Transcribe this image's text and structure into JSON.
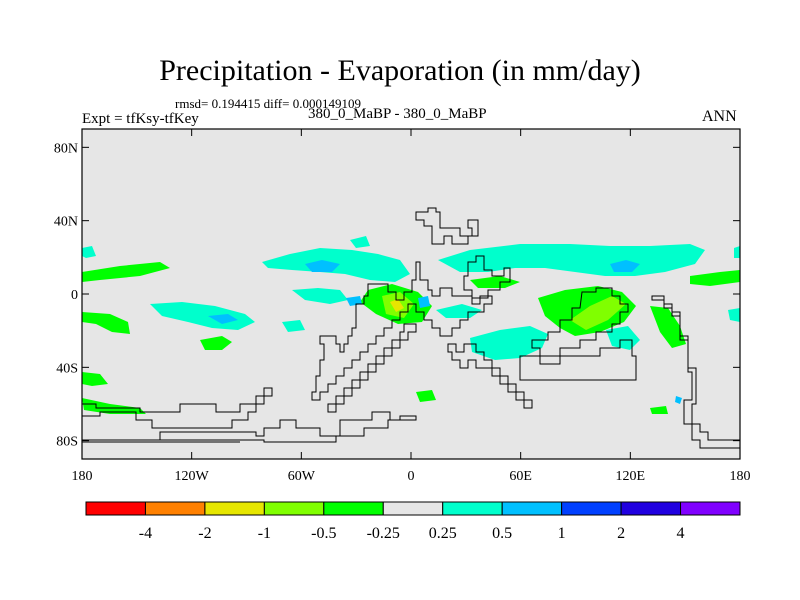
{
  "title": "Precipitation - Evaporation (in mm/day)",
  "stats": "rmsd= 0.194415 diff= 0.000149109",
  "expt": "Expt = tfKsy-tfKey",
  "subtitle": "380_0_MaBP - 380_0_MaBP",
  "season": "ANN",
  "map": {
    "projection": "cylindrical-equidistant",
    "lon_range": [
      -180,
      180
    ],
    "lat_range": [
      -90,
      90
    ],
    "background_color": "#e6e6e6",
    "lat_ticks": [
      {
        "value": 80,
        "label": "80N"
      },
      {
        "value": 40,
        "label": "40N"
      },
      {
        "value": 0,
        "label": "0"
      },
      {
        "value": -40,
        "label": "40S"
      },
      {
        "value": -80,
        "label": "80S"
      }
    ],
    "lon_ticks": [
      {
        "value": -180,
        "label": "180"
      },
      {
        "value": -120,
        "label": "120W"
      },
      {
        "value": -60,
        "label": "60W"
      },
      {
        "value": 0,
        "label": "0"
      },
      {
        "value": 60,
        "label": "60E"
      },
      {
        "value": 120,
        "label": "120E"
      },
      {
        "value": 180,
        "label": "180"
      }
    ]
  },
  "colorbar": {
    "colors": [
      "#ff0000",
      "#ff8000",
      "#e6e600",
      "#80ff00",
      "#00ff00",
      "#e6e6e6",
      "#00ffcc",
      "#00c0ff",
      "#0040ff",
      "#2000e0",
      "#8000ff"
    ],
    "labels": [
      "-4",
      "-2",
      "-1",
      "-0.5",
      "-0.25",
      "0.25",
      "0.5",
      "1",
      "2",
      "4"
    ]
  }
}
